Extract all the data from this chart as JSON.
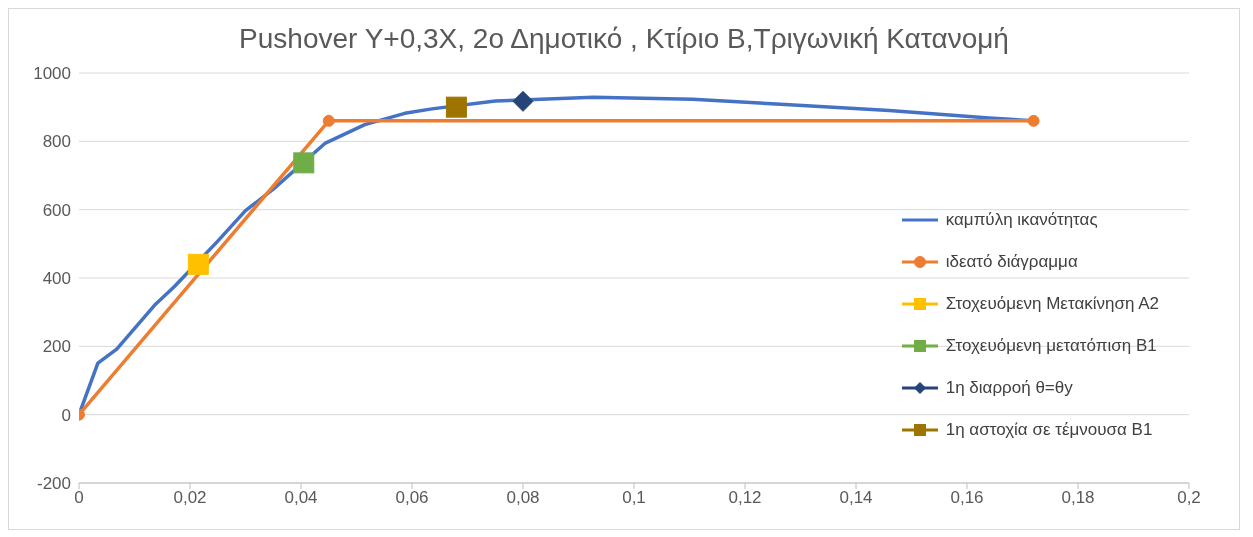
{
  "chart_data": {
    "type": "line",
    "title": "Pushover Y+0,3X, 2ο Δημοτικό , Κτίριο Β,Τριγωνική  Κατανομή",
    "xlim": [
      0,
      0.2
    ],
    "xticks": [
      0,
      {
        "value": 0.02,
        "label": "0,02"
      },
      {
        "value": 0.04,
        "label": "0,04"
      },
      {
        "value": 0.06,
        "label": "0,06"
      },
      {
        "value": 0.08,
        "label": "0,08"
      },
      {
        "value": 0.1,
        "label": "0,1"
      },
      {
        "value": 0.12,
        "label": "0,12"
      },
      {
        "value": 0.14,
        "label": "0,14"
      },
      {
        "value": 0.16,
        "label": "0,16"
      },
      {
        "value": 0.18,
        "label": "0,18"
      },
      {
        "value": 0.2,
        "label": "0,2"
      }
    ],
    "ylim": [
      -200,
      1000
    ],
    "yticks": [
      -200,
      0,
      200,
      400,
      600,
      800,
      1000
    ],
    "grid": "y",
    "legend": "right",
    "series": [
      {
        "name": "καμπύλη ικανότητας",
        "color": "#4472c4",
        "marker": "none",
        "x": [
          0,
          0.0034,
          0.0068,
          0.0136,
          0.0172,
          0.025,
          0.03,
          0.035,
          0.0444,
          0.0515,
          0.0587,
          0.0636,
          0.075,
          0.0927,
          0.1106,
          0.128,
          0.146,
          0.164,
          0.172
        ],
        "values": [
          0,
          151,
          192,
          320,
          375,
          508,
          597,
          660,
          795,
          849,
          882,
          895,
          918,
          929,
          923,
          907,
          890,
          868,
          860
        ]
      },
      {
        "name": "ιδεατό διάγραμμα",
        "color": "#ed7d31",
        "marker": "circle",
        "x": [
          0,
          0.045,
          0.172
        ],
        "values": [
          0,
          860,
          860
        ]
      },
      {
        "name": "Στοχευόμενη Μετακίνηση Α2",
        "color": "#ffc000",
        "marker": "square",
        "x": [
          0.0215
        ],
        "values": [
          440
        ]
      },
      {
        "name": "Στοχευόμενη μετατόπιση Β1",
        "color": "#70ad47",
        "marker": "square",
        "x": [
          0.0405
        ],
        "values": [
          737
        ]
      },
      {
        "name": "1η διαρροή θ=θy",
        "color": "#264478",
        "marker": "diamond",
        "x": [
          0.08
        ],
        "values": [
          917
        ]
      },
      {
        "name": "1η αστοχία σε τέμνουσα Β1",
        "color": "#9e7400",
        "marker": "square",
        "x": [
          0.068
        ],
        "values": [
          900
        ]
      }
    ]
  }
}
